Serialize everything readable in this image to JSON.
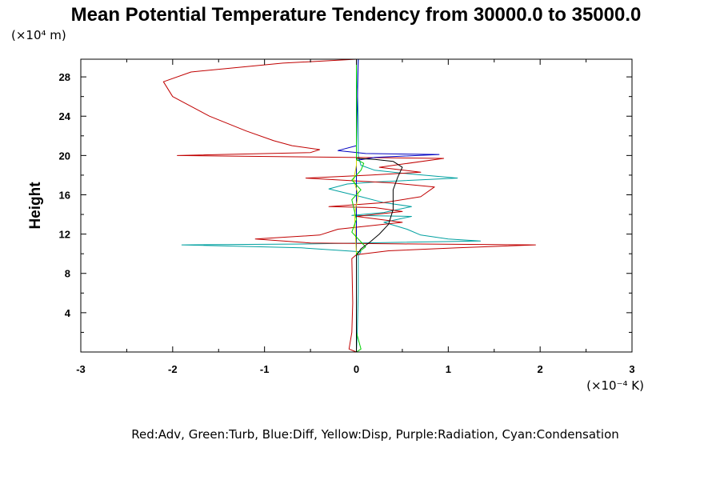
{
  "chart_data": {
    "type": "line",
    "title": "Mean Potential Temperature Tendency from 30000.0 to 35000.0",
    "ylabel": "Height",
    "y_unit_label": "(×10⁴ m)",
    "x_unit_label": "(×10⁻⁴ K)",
    "xlim": [
      -3,
      3
    ],
    "ylim": [
      0,
      29.8
    ],
    "x_ticks": [
      -3,
      -2,
      -1,
      0,
      1,
      2,
      3
    ],
    "x_tick_labels": [
      "-3",
      "-2",
      "-1",
      "0",
      "1",
      "2",
      "3"
    ],
    "y_ticks": [
      4,
      8,
      12,
      16,
      20,
      24,
      28
    ],
    "y_tick_labels": [
      "4",
      "8",
      "12",
      "16",
      "20",
      "24",
      "28"
    ],
    "grid": false,
    "legend_text": "Red:Adv, Green:Turb, Blue:Diff, Yellow:Disp, Purple:Radiation, Cyan:Condensation",
    "series": [
      {
        "color": "#00a0a0",
        "points": [
          [
            0,
            0
          ],
          [
            0.01,
            2
          ],
          [
            0.02,
            6
          ],
          [
            0.02,
            9.8
          ],
          [
            0.05,
            10.2
          ],
          [
            -0.6,
            10.6
          ],
          [
            -1.9,
            10.9
          ],
          [
            -0.5,
            11.0
          ],
          [
            1.35,
            11.3
          ],
          [
            1.0,
            11.5
          ],
          [
            0.7,
            11.9
          ],
          [
            0.55,
            12.5
          ],
          [
            0.3,
            13.2
          ],
          [
            0.6,
            13.8
          ],
          [
            -0.05,
            13.9
          ],
          [
            0.3,
            14.2
          ],
          [
            0.6,
            14.8
          ],
          [
            0.3,
            15.2
          ],
          [
            0.05,
            15.8
          ],
          [
            -0.3,
            16.6
          ],
          [
            -0.1,
            17.1
          ],
          [
            0.2,
            17.3
          ],
          [
            1.1,
            17.7
          ],
          [
            0.5,
            18.2
          ],
          [
            0.2,
            18.5
          ],
          [
            0.05,
            19.0
          ],
          [
            0.02,
            20
          ],
          [
            0.02,
            24
          ],
          [
            0.01,
            27
          ],
          [
            0.02,
            29.8
          ]
        ]
      },
      {
        "color": "#c00000",
        "points": [
          [
            0,
            0
          ],
          [
            -0.08,
            0.3
          ],
          [
            -0.05,
            2
          ],
          [
            -0.04,
            5
          ],
          [
            -0.05,
            9.5
          ],
          [
            0,
            9.9
          ],
          [
            0.35,
            10.3
          ],
          [
            1.1,
            10.6
          ],
          [
            1.95,
            10.9
          ],
          [
            0.5,
            11.0
          ],
          [
            -0.5,
            11.1
          ],
          [
            -1.1,
            11.5
          ],
          [
            -0.4,
            11.9
          ],
          [
            -0.2,
            12.5
          ],
          [
            0.5,
            13.2
          ],
          [
            0.0,
            13.8
          ],
          [
            0.5,
            14.3
          ],
          [
            0.2,
            14.7
          ],
          [
            -0.3,
            14.8
          ],
          [
            0.3,
            15.2
          ],
          [
            0.7,
            15.8
          ],
          [
            0.85,
            16.8
          ],
          [
            0.4,
            17.2
          ],
          [
            -0.55,
            17.7
          ],
          [
            0.15,
            18.0
          ],
          [
            0.7,
            18.3
          ],
          [
            0.25,
            18.8
          ],
          [
            0.95,
            19.7
          ],
          [
            -1.95,
            20.0
          ],
          [
            -0.5,
            20.3
          ],
          [
            -0.4,
            20.6
          ],
          [
            -0.7,
            21.0
          ],
          [
            -0.9,
            21.5
          ],
          [
            -1.2,
            22.5
          ],
          [
            -1.6,
            24.0
          ],
          [
            -2.0,
            26.0
          ],
          [
            -2.1,
            27.5
          ],
          [
            -1.8,
            28.5
          ],
          [
            -0.8,
            29.4
          ],
          [
            0.0,
            29.8
          ]
        ]
      },
      {
        "color": "#0000c0",
        "points": [
          [
            0,
            0
          ],
          [
            0,
            5
          ],
          [
            0,
            10
          ],
          [
            0,
            19.5
          ],
          [
            0.2,
            19.8
          ],
          [
            0.9,
            20.1
          ],
          [
            0.1,
            20.2
          ],
          [
            -0.2,
            20.5
          ],
          [
            0,
            21
          ],
          [
            0.01,
            25
          ],
          [
            0.02,
            29.8
          ]
        ]
      },
      {
        "color": "#d8d800",
        "points": [
          [
            0,
            0
          ],
          [
            0,
            10
          ],
          [
            -0.02,
            14
          ],
          [
            0.02,
            16
          ],
          [
            -0.03,
            17.5
          ],
          [
            0,
            19
          ],
          [
            0,
            20
          ],
          [
            0,
            29.8
          ]
        ]
      },
      {
        "color": "#00d000",
        "points": [
          [
            0,
            0
          ],
          [
            0.05,
            0.3
          ],
          [
            0,
            2
          ],
          [
            0,
            10
          ],
          [
            0.1,
            10.7
          ],
          [
            0.05,
            11.2
          ],
          [
            -0.05,
            12.2
          ],
          [
            0,
            13.5
          ],
          [
            -0.05,
            15.5
          ],
          [
            0.05,
            16.5
          ],
          [
            -0.05,
            17.5
          ],
          [
            0.05,
            18.5
          ],
          [
            0.08,
            19.2
          ],
          [
            0,
            19.6
          ],
          [
            0,
            29.8
          ]
        ]
      },
      {
        "color": "#000000",
        "points": [
          [
            0,
            0
          ],
          [
            0,
            9.8
          ],
          [
            0.05,
            10.5
          ],
          [
            0.15,
            11.2
          ],
          [
            0.25,
            12.0
          ],
          [
            0.35,
            13.0
          ],
          [
            0.4,
            14.5
          ],
          [
            0.4,
            15.5
          ],
          [
            0.4,
            16.5
          ],
          [
            0.45,
            17.8
          ],
          [
            0.5,
            18.8
          ],
          [
            0.4,
            19.4
          ],
          [
            0.2,
            19.6
          ],
          [
            0,
            19.7
          ]
        ]
      }
    ]
  }
}
